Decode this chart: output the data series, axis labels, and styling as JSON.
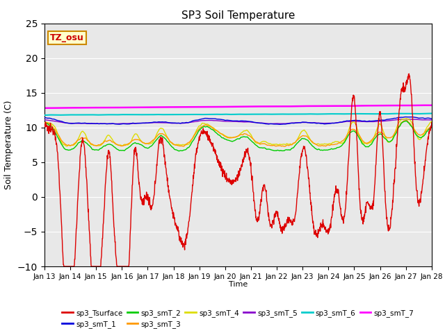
{
  "title": "SP3 Soil Temperature",
  "ylabel": "Soil Temperature (C)",
  "xlabel": "Time",
  "ylim": [
    -10,
    25
  ],
  "plot_bg_color": "#e8e8e8",
  "fig_bg_color": "#ffffff",
  "series_colors": {
    "sp3_Tsurface": "#dd0000",
    "sp3_smT_1": "#0000dd",
    "sp3_smT_2": "#00cc00",
    "sp3_smT_3": "#ff9900",
    "sp3_smT_4": "#dddd00",
    "sp3_smT_5": "#8800cc",
    "sp3_smT_6": "#00cccc",
    "sp3_smT_7": "#ff00ff"
  },
  "xtick_labels": [
    "Jan 13",
    "Jan 14",
    "Jan 15",
    "Jan 16",
    "Jan 17",
    "Jan 18",
    "Jan 19",
    "Jan 20",
    "Jan 21",
    "Jan 22",
    "Jan 23",
    "Jan 24",
    "Jan 25",
    "Jan 26",
    "Jan 27",
    "Jan 28"
  ],
  "xtick_positions": [
    0,
    24,
    48,
    72,
    96,
    120,
    144,
    168,
    192,
    216,
    240,
    264,
    288,
    312,
    336,
    360
  ],
  "annotation_text": "TZ_osu",
  "annotation_color": "#cc0000",
  "annotation_bg": "#ffffcc",
  "annotation_border": "#cc8800"
}
